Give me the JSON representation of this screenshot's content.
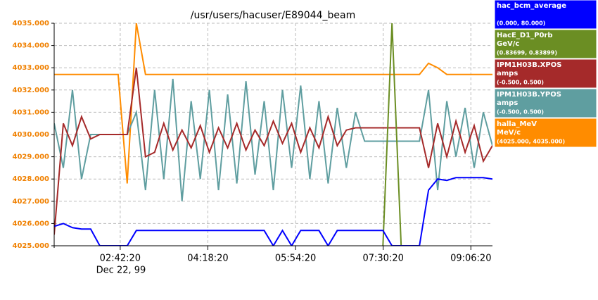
{
  "chart_data": {
    "type": "line",
    "title": "/usr/users/hacuser/E89044_beam",
    "date_label": "Dec 22, 99",
    "x": [
      "01:30:00",
      "01:40:00",
      "01:50:00",
      "02:00:00",
      "02:10:00",
      "02:20:00",
      "02:30:00",
      "02:40:00",
      "02:50:00",
      "03:00:00",
      "03:10:00",
      "03:20:00",
      "03:30:00",
      "03:40:00",
      "03:50:00",
      "04:00:00",
      "04:10:00",
      "04:20:00",
      "04:30:00",
      "04:40:00",
      "04:50:00",
      "05:00:00",
      "05:10:00",
      "05:20:00",
      "05:30:00",
      "05:40:00",
      "05:50:00",
      "06:00:00",
      "06:10:00",
      "06:20:00",
      "06:30:00",
      "06:40:00",
      "06:50:00",
      "07:00:00",
      "07:10:00",
      "07:20:00",
      "07:30:00",
      "07:40:00",
      "07:50:00",
      "08:00:00",
      "08:10:00",
      "08:20:00",
      "08:30:00",
      "08:40:00",
      "08:50:00",
      "09:00:00",
      "09:10:00",
      "09:20:00",
      "09:30:00"
    ],
    "xlim": [
      "01:30:00",
      "09:30:00"
    ],
    "xticks": [
      "02:42:20",
      "04:18:20",
      "05:54:20",
      "07:30:20",
      "09:06:20"
    ],
    "ylim": [
      4025,
      4035
    ],
    "yticks": [
      {
        "value": 4025,
        "label": "4025.000"
      },
      {
        "value": 4026,
        "label": "4026.000"
      },
      {
        "value": 4027,
        "label": "4027.000"
      },
      {
        "value": 4028,
        "label": "4028.000"
      },
      {
        "value": 4029,
        "label": "4029.000"
      },
      {
        "value": 4030,
        "label": "4030.000"
      },
      {
        "value": 4031,
        "label": "4031.000"
      },
      {
        "value": 4032,
        "label": "4032.000"
      },
      {
        "value": 4033,
        "label": "4033.000"
      },
      {
        "value": 4034,
        "label": "4034.000"
      },
      {
        "value": 4035,
        "label": "4035.000"
      }
    ],
    "ytick_color": "#f08000",
    "grid": true,
    "series": [
      {
        "name": "hac_bcm_average",
        "color": "#0000ff",
        "scale": {
          "value": [
            0,
            80
          ],
          "label": "(0.000, 80.000)"
        },
        "values": [
          7,
          8,
          6.5,
          6,
          6,
          0,
          0,
          0,
          0,
          5.5,
          5.5,
          5.5,
          5.5,
          5.5,
          5.5,
          5.5,
          5.5,
          5.5,
          5.5,
          5.5,
          5.5,
          5.5,
          5.5,
          5.5,
          0,
          5.5,
          0,
          5.5,
          5.5,
          5.5,
          0,
          5.5,
          5.5,
          5.5,
          5.5,
          5.5,
          5.5,
          0,
          0,
          0,
          0,
          20,
          24,
          23.5,
          24.5,
          24.5,
          24.5,
          24.5,
          24
        ]
      },
      {
        "name": "HacE_D1_P0rb",
        "unit": "GeV/c",
        "color": "#6b8e23",
        "scale": {
          "value": [
            0.83699,
            0.83899
          ],
          "label": "(0.83699, 0.83899)"
        },
        "values": [
          null,
          null,
          null,
          null,
          null,
          null,
          null,
          null,
          null,
          null,
          null,
          null,
          null,
          null,
          null,
          null,
          null,
          null,
          null,
          null,
          null,
          null,
          null,
          null,
          null,
          null,
          null,
          null,
          null,
          null,
          null,
          null,
          null,
          null,
          null,
          null,
          0.83699,
          0.83899,
          0.83699,
          null,
          null,
          null,
          null,
          null,
          null,
          null,
          null,
          null,
          null
        ]
      },
      {
        "name": "IPM1H03B.XPOS",
        "unit": "amps",
        "color": "#a52a2a",
        "scale": {
          "value": [
            -0.5,
            0.5
          ],
          "label": "(-0.500, 0.500)"
        },
        "values": [
          -0.45,
          0.05,
          -0.05,
          0.08,
          -0.02,
          0,
          0,
          0,
          0,
          0.3,
          -0.1,
          -0.08,
          0.05,
          -0.07,
          0.02,
          -0.06,
          0.04,
          -0.08,
          0.03,
          -0.06,
          0.05,
          -0.07,
          0.02,
          -0.05,
          0.06,
          -0.04,
          0.05,
          -0.08,
          0.03,
          -0.06,
          0.08,
          -0.05,
          0.02,
          0.03,
          0.03,
          0.03,
          0.03,
          0.03,
          0.03,
          0.03,
          0.03,
          -0.15,
          0.05,
          -0.1,
          0.06,
          -0.08,
          0.04,
          -0.12,
          -0.05
        ]
      },
      {
        "name": "IPM1H03B.YPOS",
        "unit": "amps",
        "color": "#5f9ea0",
        "scale": {
          "value": [
            -0.5,
            0.5
          ],
          "label": "(-0.500, 0.500)"
        },
        "values": [
          0.05,
          -0.15,
          0.2,
          -0.2,
          0,
          0,
          0,
          0,
          0,
          0.1,
          -0.25,
          0.2,
          -0.2,
          0.25,
          -0.3,
          0.15,
          -0.2,
          0.2,
          -0.25,
          0.18,
          -0.22,
          0.24,
          -0.18,
          0.15,
          -0.25,
          0.2,
          -0.15,
          0.22,
          -0.2,
          0.15,
          -0.22,
          0.12,
          -0.15,
          0.1,
          -0.03,
          -0.03,
          -0.03,
          -0.03,
          -0.03,
          -0.03,
          -0.03,
          0.2,
          -0.25,
          0.15,
          -0.1,
          0.12,
          -0.15,
          0.1,
          -0.05
        ]
      },
      {
        "name": "halla_MeV",
        "unit": "MeV/c",
        "color": "#ff8c00",
        "scale": {
          "value": [
            4025,
            4035
          ],
          "label": "(4025.000, 4035.000)"
        },
        "values": [
          4032.7,
          4032.7,
          4032.7,
          4032.7,
          4032.7,
          4032.7,
          4032.7,
          4032.7,
          4027.8,
          4035,
          4032.7,
          4032.7,
          4032.7,
          4032.7,
          4032.7,
          4032.7,
          4032.7,
          4032.7,
          4032.7,
          4032.7,
          4032.7,
          4032.7,
          4032.7,
          4032.7,
          4032.7,
          4032.7,
          4032.7,
          4032.7,
          4032.7,
          4032.7,
          4032.7,
          4032.7,
          4032.7,
          4032.7,
          4032.7,
          4032.7,
          4032.7,
          4032.7,
          4032.7,
          4032.7,
          4032.7,
          4033.2,
          4033,
          4032.7,
          4032.7,
          4032.7,
          4032.7,
          4032.7,
          4032.7
        ]
      }
    ]
  }
}
